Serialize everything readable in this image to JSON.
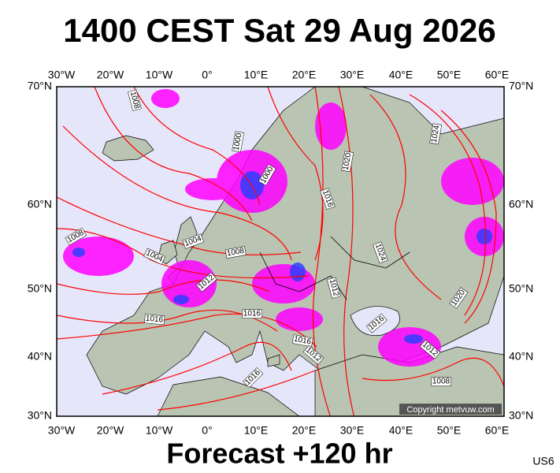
{
  "title": "1400 CEST Sat 29 Aug 2026",
  "map": {
    "longitude_labels": [
      "30°W",
      "20°W",
      "10°W",
      "0°",
      "10°E",
      "20°E",
      "30°E",
      "40°E",
      "50°E",
      "60°E"
    ],
    "latitude_labels": [
      "70°N",
      "60°N",
      "50°N",
      "40°N",
      "30°N"
    ],
    "isobar_labels": [
      "1008",
      "1000",
      "1000",
      "1020",
      "1016",
      "1024",
      "1024",
      "1008",
      "1004",
      "1004",
      "1008",
      "1012",
      "1016",
      "1016",
      "1016",
      "1012",
      "1012",
      "1016",
      "1012",
      "1008",
      "1020",
      "1016"
    ],
    "copyright": "Copyright metvuw.com"
  },
  "footer": {
    "forecast": "Forecast +120 hr",
    "code": "US6"
  }
}
